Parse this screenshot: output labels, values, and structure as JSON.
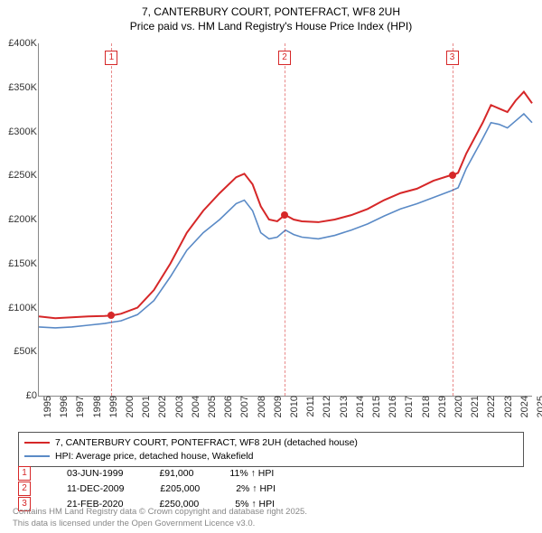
{
  "title_line1": "7, CANTERBURY COURT, PONTEFRACT, WF8 2UH",
  "title_line2": "Price paid vs. HM Land Registry's House Price Index (HPI)",
  "chart": {
    "type": "line",
    "x_min_year": 1995,
    "x_max_year": 2025,
    "y_min": 0,
    "y_max": 400,
    "ytick_step": 50,
    "ytick_labels": [
      "£0",
      "£50K",
      "£100K",
      "£150K",
      "£200K",
      "£250K",
      "£300K",
      "£350K",
      "£400K"
    ],
    "xtick_years": [
      1995,
      1996,
      1997,
      1998,
      1999,
      2000,
      2001,
      2002,
      2003,
      2004,
      2005,
      2006,
      2007,
      2008,
      2009,
      2010,
      2011,
      2012,
      2013,
      2014,
      2015,
      2016,
      2017,
      2018,
      2019,
      2020,
      2021,
      2022,
      2023,
      2024,
      2025
    ],
    "series": [
      {
        "name": "7, CANTERBURY COURT, PONTEFRACT, WF8 2UH (detached house)",
        "color": "#d62728",
        "width": 2,
        "data": [
          [
            1995,
            90
          ],
          [
            1996,
            88
          ],
          [
            1997,
            89
          ],
          [
            1998,
            90
          ],
          [
            1999,
            90.5
          ],
          [
            1999.42,
            91
          ],
          [
            2000,
            93
          ],
          [
            2001,
            100
          ],
          [
            2002,
            120
          ],
          [
            2003,
            150
          ],
          [
            2004,
            185
          ],
          [
            2005,
            210
          ],
          [
            2006,
            230
          ],
          [
            2007,
            248
          ],
          [
            2007.5,
            252
          ],
          [
            2008,
            240
          ],
          [
            2008.5,
            215
          ],
          [
            2009,
            200
          ],
          [
            2009.5,
            198
          ],
          [
            2009.95,
            205
          ],
          [
            2010,
            205
          ],
          [
            2010.5,
            200
          ],
          [
            2011,
            198
          ],
          [
            2012,
            197
          ],
          [
            2013,
            200
          ],
          [
            2014,
            205
          ],
          [
            2015,
            212
          ],
          [
            2016,
            222
          ],
          [
            2017,
            230
          ],
          [
            2018,
            235
          ],
          [
            2019,
            244
          ],
          [
            2020,
            250
          ],
          [
            2020.14,
            250
          ],
          [
            2020.5,
            253
          ],
          [
            2021,
            275
          ],
          [
            2022,
            310
          ],
          [
            2022.5,
            330
          ],
          [
            2023,
            326
          ],
          [
            2023.5,
            322
          ],
          [
            2024,
            335
          ],
          [
            2024.5,
            345
          ],
          [
            2025,
            332
          ]
        ]
      },
      {
        "name": "HPI: Average price, detached house, Wakefield",
        "color": "#5a8ac6",
        "width": 1.6,
        "data": [
          [
            1995,
            78
          ],
          [
            1996,
            77
          ],
          [
            1997,
            78
          ],
          [
            1998,
            80
          ],
          [
            1999,
            82
          ],
          [
            2000,
            85
          ],
          [
            2001,
            92
          ],
          [
            2002,
            108
          ],
          [
            2003,
            135
          ],
          [
            2004,
            165
          ],
          [
            2005,
            185
          ],
          [
            2006,
            200
          ],
          [
            2007,
            218
          ],
          [
            2007.5,
            222
          ],
          [
            2008,
            210
          ],
          [
            2008.5,
            185
          ],
          [
            2009,
            178
          ],
          [
            2009.5,
            180
          ],
          [
            2010,
            188
          ],
          [
            2010.5,
            183
          ],
          [
            2011,
            180
          ],
          [
            2012,
            178
          ],
          [
            2013,
            182
          ],
          [
            2014,
            188
          ],
          [
            2015,
            195
          ],
          [
            2016,
            204
          ],
          [
            2017,
            212
          ],
          [
            2018,
            218
          ],
          [
            2019,
            225
          ],
          [
            2020,
            232
          ],
          [
            2020.5,
            236
          ],
          [
            2021,
            258
          ],
          [
            2022,
            292
          ],
          [
            2022.5,
            310
          ],
          [
            2023,
            308
          ],
          [
            2023.5,
            304
          ],
          [
            2024,
            312
          ],
          [
            2024.5,
            320
          ],
          [
            2025,
            310
          ]
        ]
      }
    ],
    "sales": [
      {
        "n": "1",
        "year": 1999.42,
        "price": 91
      },
      {
        "n": "2",
        "year": 2009.95,
        "price": 205
      },
      {
        "n": "3",
        "year": 2020.14,
        "price": 250
      }
    ],
    "background_color": "#ffffff"
  },
  "legend": {
    "items": [
      {
        "color": "#d62728",
        "label": "7, CANTERBURY COURT, PONTEFRACT, WF8 2UH (detached house)"
      },
      {
        "color": "#5a8ac6",
        "label": "HPI: Average price, detached house, Wakefield"
      }
    ]
  },
  "sales_table": [
    {
      "n": "1",
      "date": "03-JUN-1999",
      "price": "£91,000",
      "delta": "11% ↑ HPI"
    },
    {
      "n": "2",
      "date": "11-DEC-2009",
      "price": "£205,000",
      "delta": "2% ↑ HPI"
    },
    {
      "n": "3",
      "date": "21-FEB-2020",
      "price": "£250,000",
      "delta": "5% ↑ HPI"
    }
  ],
  "footer_line1": "Contains HM Land Registry data © Crown copyright and database right 2025.",
  "footer_line2": "This data is licensed under the Open Government Licence v3.0."
}
